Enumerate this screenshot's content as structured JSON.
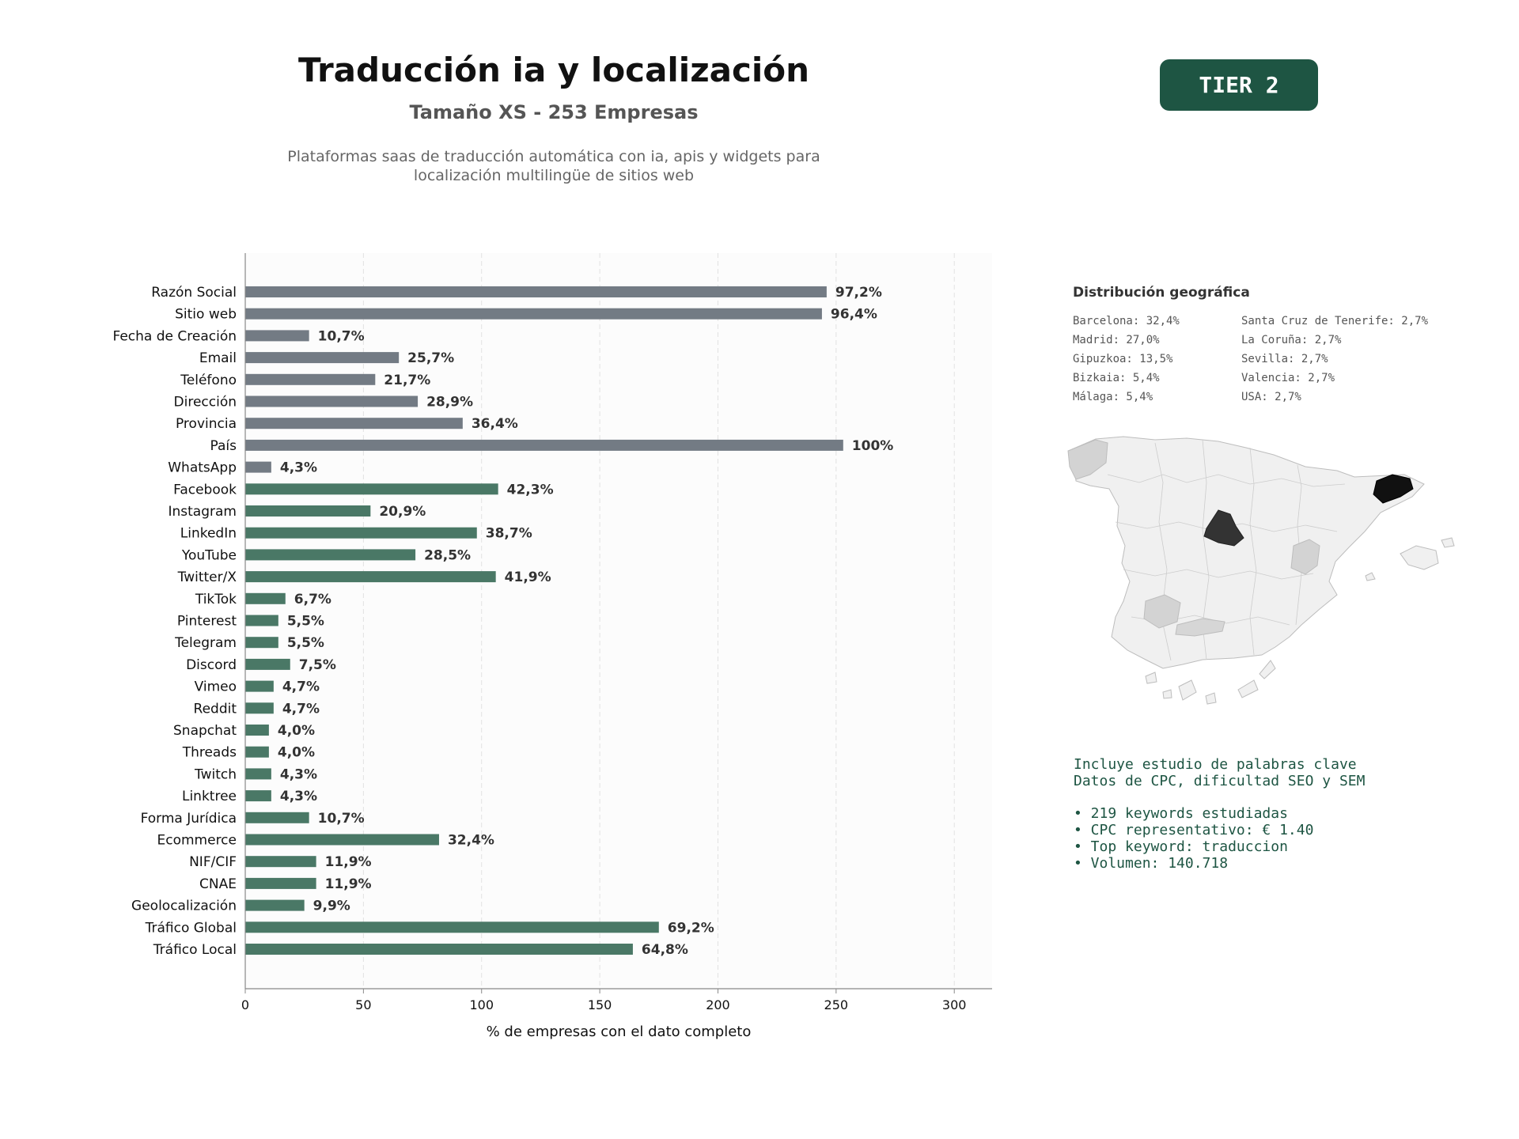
{
  "header": {
    "title": "Traducción ia y localización",
    "subtitle": "Tamaño XS - 253 Empresas",
    "description_line1": "Plataformas saas de traducción automática con ia, apis y widgets para",
    "description_line2": "localización multilingüe de sitios web",
    "tier": "TIER 2"
  },
  "chart_data": {
    "type": "bar",
    "orientation": "horizontal",
    "categories": [
      "Razón Social",
      "Sitio web",
      "Fecha de Creación",
      "Email",
      "Teléfono",
      "Dirección",
      "Provincia",
      "País",
      "WhatsApp",
      "Facebook",
      "Instagram",
      "LinkedIn",
      "YouTube",
      "Twitter/X",
      "TikTok",
      "Pinterest",
      "Telegram",
      "Discord",
      "Vimeo",
      "Reddit",
      "Snapchat",
      "Threads",
      "Twitch",
      "Linktree",
      "Forma Jurídica",
      "Ecommerce",
      "NIF/CIF",
      "CNAE",
      "Geolocalización",
      "Tráfico Global",
      "Tráfico Local"
    ],
    "values": [
      246,
      244,
      27,
      65,
      55,
      73,
      92,
      253,
      11,
      107,
      53,
      98,
      72,
      106,
      17,
      14,
      14,
      19,
      12,
      12,
      10,
      10,
      11,
      11,
      27,
      82,
      30,
      30,
      25,
      175,
      164
    ],
    "labels": [
      "97,2%",
      "96,4%",
      "10,7%",
      "25,7%",
      "21,7%",
      "28,9%",
      "36,4%",
      "100%",
      "4,3%",
      "42,3%",
      "20,9%",
      "38,7%",
      "28,5%",
      "41,9%",
      "6,7%",
      "5,5%",
      "5,5%",
      "7,5%",
      "4,7%",
      "4,7%",
      "4,0%",
      "4,0%",
      "4,3%",
      "4,3%",
      "10,7%",
      "32,4%",
      "11,9%",
      "11,9%",
      "9,9%",
      "69,2%",
      "64,8%"
    ],
    "groups": [
      "basic",
      "basic",
      "basic",
      "basic",
      "basic",
      "basic",
      "basic",
      "basic",
      "basic",
      "social",
      "social",
      "social",
      "social",
      "social",
      "social",
      "social",
      "social",
      "social",
      "social",
      "social",
      "social",
      "social",
      "social",
      "social",
      "social",
      "social",
      "social",
      "social",
      "social",
      "social",
      "social"
    ],
    "colors": {
      "basic": "#737b84",
      "social": "#4a7866"
    },
    "xlabel": "% de empresas con el dato completo",
    "xlim": [
      0,
      316
    ],
    "xticks": [
      0,
      50,
      100,
      150,
      200,
      250,
      300
    ],
    "grid": "vertical dashed"
  },
  "geo": {
    "title": "Distribución geográfica",
    "items": [
      "Barcelona: 32,4%",
      "Santa Cruz de Tenerife: 2,7%",
      "Madrid: 27,0%",
      "La Coruña: 2,7%",
      "Gipuzkoa: 13,5%",
      "Sevilla: 2,7%",
      "Bizkaia: 5,4%",
      "Valencia: 2,7%",
      "Málaga: 5,4%",
      "USA: 2,7%"
    ]
  },
  "keywords": {
    "line1": "Incluye estudio de palabras clave",
    "line2": "Datos de CPC, dificultad SEO y SEM",
    "bullet1": "• 219 keywords estudiadas",
    "bullet2": "• CPC representativo: € 1.40",
    "bullet3": "• Top keyword: traduccion",
    "bullet4": "• Volumen: 140.718"
  }
}
